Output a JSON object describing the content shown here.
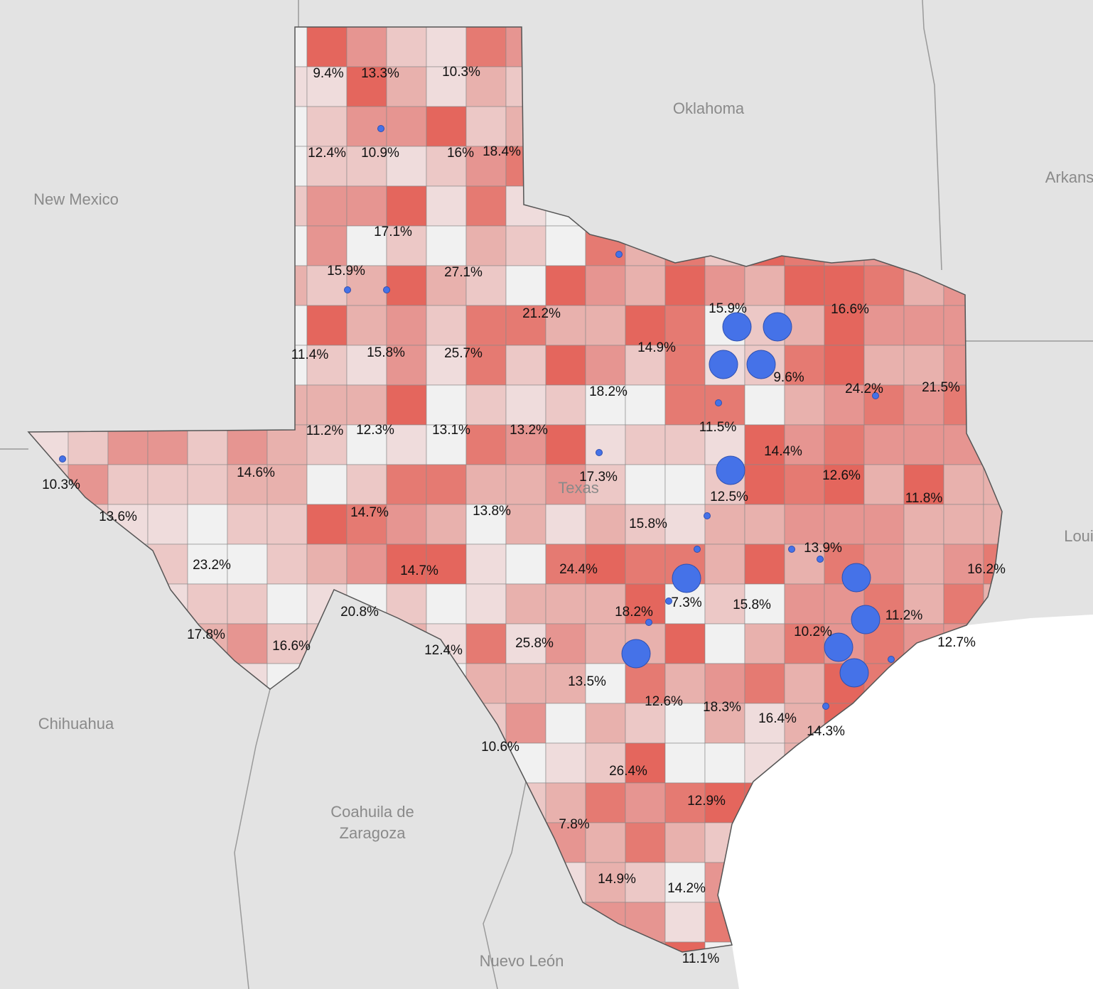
{
  "places": [
    "Oklahoma",
    "New Mexico",
    "Arkans",
    "Loui",
    "Texas",
    "Chihuahua",
    "Nuevo León"
  ],
  "coahuila": [
    "Coahuila de",
    "Zaragoza"
  ],
  "county_labels": [
    "9.4%",
    "13.3%",
    "10.3%",
    "12.4%",
    "10.9%",
    "16%",
    "18.4%",
    "17.1%",
    "15.9%",
    "27.1%",
    "21.2%",
    "15.9%",
    "16.6%",
    "11.4%",
    "15.8%",
    "25.7%",
    "14.9%",
    "9.6%",
    "18.2%",
    "24.2%",
    "21.5%",
    "11.2%",
    "12.3%",
    "13.1%",
    "13.2%",
    "11.5%",
    "14.4%",
    "14.6%",
    "10.3%",
    "17.3%",
    "12.5%",
    "12.6%",
    "11.8%",
    "13.6%",
    "14.7%",
    "13.8%",
    "15.8%",
    "13.9%",
    "23.2%",
    "14.7%",
    "24.4%",
    "16.2%",
    "7.3%",
    "15.8%",
    "20.8%",
    "18.2%",
    "11.2%",
    "10.2%",
    "17.8%",
    "16.6%",
    "12.4%",
    "25.8%",
    "12.7%",
    "13.5%",
    "12.6%",
    "18.3%",
    "16.4%",
    "14.3%",
    "10.6%",
    "26.4%",
    "12.9%",
    "7.8%",
    "14.9%",
    "14.2%",
    "11.1%"
  ]
}
